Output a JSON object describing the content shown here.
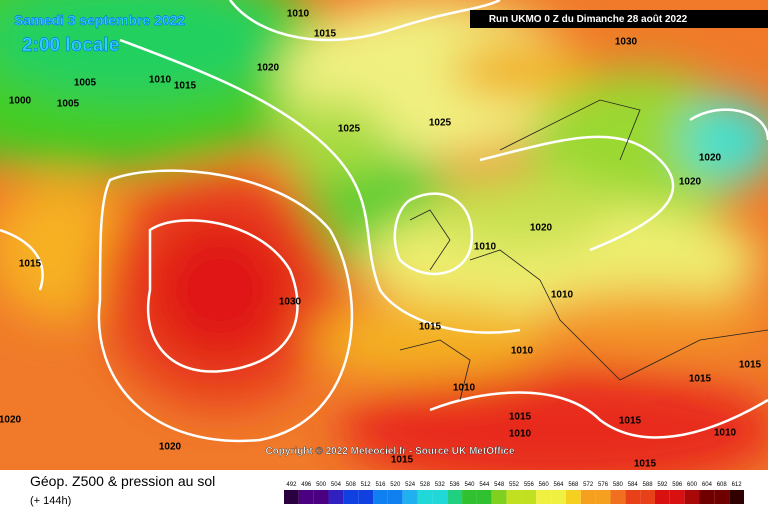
{
  "header": {
    "date": "Samedi 3 septembre 2022",
    "time": "2:00 locale",
    "run": "Run UKMO 0 Z du Dimanche 28 août 2022"
  },
  "copyright": "Copyright © 2022 Meteociel.fr - Source UK MetOffice",
  "footer": {
    "title": "Géop. Z500 & pression au sol",
    "lead": "(+ 144h)"
  },
  "legend": {
    "labels": [
      492,
      496,
      500,
      504,
      508,
      512,
      516,
      520,
      524,
      528,
      532,
      536,
      540,
      544,
      548,
      552,
      556,
      560,
      564,
      568,
      572,
      576,
      580,
      584,
      588,
      592,
      596,
      600,
      604,
      608,
      612
    ]
  },
  "isobar_labels": [
    1010,
    1015,
    1020,
    1005,
    1005,
    1000,
    1010,
    1015,
    1025,
    1025,
    1030,
    1020,
    1020,
    1020,
    1010,
    1010,
    1030,
    1015,
    1010,
    1010,
    1015,
    1010,
    1015,
    1015,
    1015,
    1010,
    1020,
    1020,
    1015,
    1015,
    1015
  ]
}
